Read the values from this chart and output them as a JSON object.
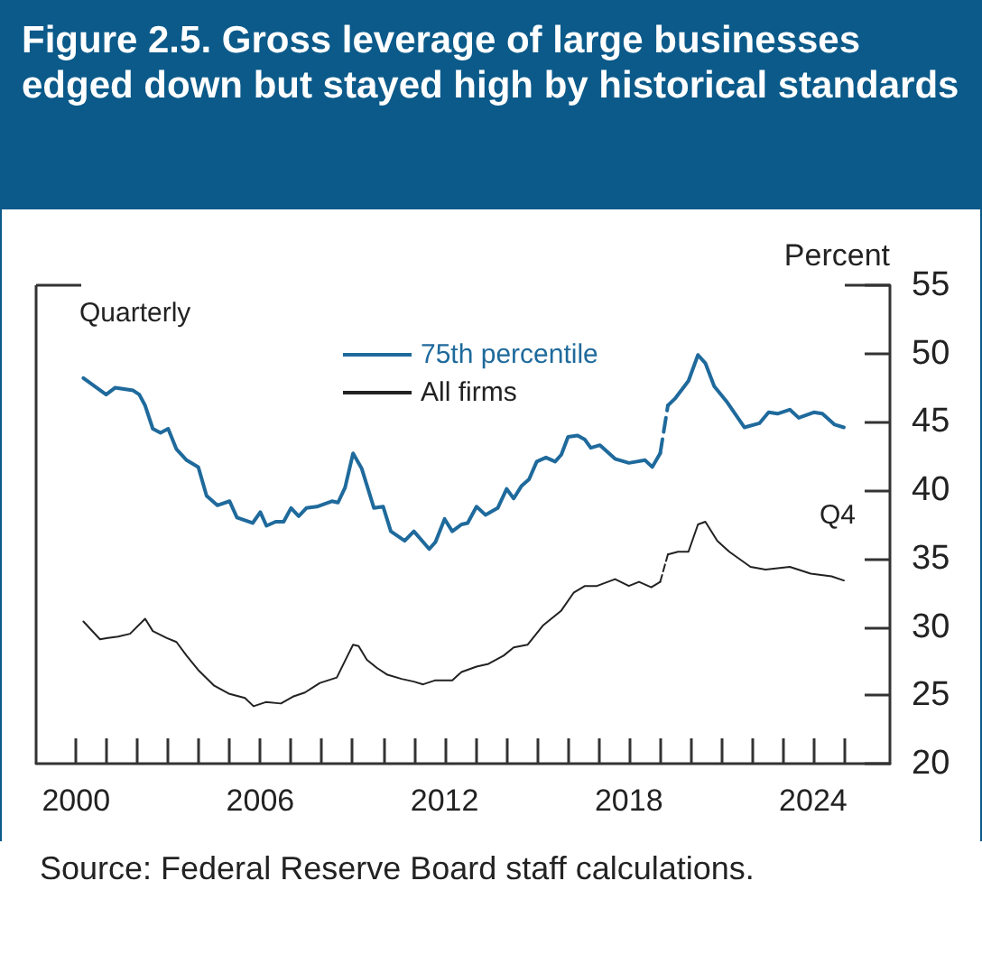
{
  "chart_data": {
    "type": "line",
    "title": "Figure 2.5. Gross leverage of large businesses edged down but stayed high by historical standards",
    "ylabel": "Percent",
    "annotations": [
      "Quarterly",
      "Q4",
      "Source: Federal Reserve Board staff calculations."
    ],
    "xlim": [
      1998.7,
      2026.5
    ],
    "xticks": [
      2000,
      {
        "value": 2001,
        "label": null
      },
      {
        "value": 2002,
        "label": null
      },
      {
        "value": 2003,
        "label": null
      },
      {
        "value": 2004,
        "label": null
      },
      {
        "value": 2005,
        "label": null
      },
      2006,
      {
        "value": 2007,
        "label": null
      },
      {
        "value": 2008,
        "label": null
      },
      {
        "value": 2009,
        "label": null
      },
      {
        "value": 2010,
        "label": null
      },
      {
        "value": 2011,
        "label": null
      },
      2012,
      {
        "value": 2013,
        "label": null
      },
      {
        "value": 2014,
        "label": null
      },
      {
        "value": 2015,
        "label": null
      },
      {
        "value": 2016,
        "label": null
      },
      {
        "value": 2017,
        "label": null
      },
      2018,
      {
        "value": 2019,
        "label": null
      },
      {
        "value": 2020,
        "label": null
      },
      {
        "value": 2021,
        "label": null
      },
      {
        "value": 2022,
        "label": null
      },
      {
        "value": 2023,
        "label": null
      },
      2024,
      {
        "value": 2025,
        "label": null
      }
    ],
    "ylim": [
      20,
      55
    ],
    "yticks": [
      20,
      25,
      30,
      35,
      40,
      45,
      50,
      55
    ],
    "grid": false,
    "legend": "top",
    "marker": "none",
    "series": [
      {
        "name": "75th percentile",
        "color": "#1f6a9c",
        "line_style": "solid",
        "x": [
          2000.24,
          2000.98,
          2001.27,
          2001.86,
          2002.06,
          2002.25,
          2002.5,
          2002.75,
          2003.0,
          2003.27,
          2003.6,
          2003.98,
          2004.25,
          2004.6,
          2005.0,
          2005.24,
          2005.75,
          2006.0,
          2006.2,
          2006.5,
          2006.76,
          2007.0,
          2007.25,
          2007.5,
          2007.84,
          2008.33,
          2008.53,
          2008.76,
          2009.02,
          2009.3,
          2009.7,
          2010.0,
          2010.25,
          2010.7,
          2011.0,
          2011.5,
          2011.7,
          2012.0,
          2012.25,
          2012.55,
          2012.75,
          2013.04,
          2013.33,
          2013.73,
          2014.02,
          2014.25,
          2014.5,
          2014.75,
          2015.0,
          2015.3,
          2015.6,
          2015.8,
          2016.02,
          2016.33,
          2016.57,
          2016.76,
          2017.06,
          2017.55,
          2018.0,
          2018.53,
          2018.76,
          2019.02
        ],
        "values": [
          48.2,
          47.0,
          47.5,
          47.3,
          47.0,
          46.2,
          44.5,
          44.2,
          44.5,
          43.0,
          42.2,
          41.7,
          39.6,
          38.9,
          39.2,
          38.0,
          37.6,
          38.4,
          37.4,
          37.7,
          37.7,
          38.7,
          38.1,
          38.7,
          38.8,
          39.2,
          39.1,
          40.2,
          42.7,
          41.6,
          38.7,
          38.8,
          37.0,
          36.3,
          37.0,
          35.7,
          36.2,
          37.9,
          37.0,
          37.5,
          37.6,
          38.8,
          38.2,
          38.7,
          40.1,
          39.4,
          40.3,
          40.8,
          42.1,
          42.4,
          42.1,
          42.6,
          43.9,
          44.0,
          43.7,
          43.1,
          43.3,
          42.3,
          42.0,
          42.2,
          41.7,
          42.7
        ]
      },
      {
        "color": "#1f6a9c",
        "line_style": "dashed",
        "x": [
          2019.02,
          2019.27
        ],
        "values": [
          42.7,
          46.2
        ]
      },
      {
        "color": "#1f6a9c",
        "line_style": "solid",
        "x": [
          2019.27,
          2019.5,
          2019.94,
          2020.25,
          2020.49,
          2020.78,
          2021.18,
          2021.76,
          2022.25,
          2022.55,
          2022.84,
          2023.24,
          2023.53,
          2024.02,
          2024.3,
          2024.7,
          2025.0
        ],
        "values": [
          46.2,
          46.7,
          48.0,
          49.9,
          49.3,
          47.6,
          46.5,
          44.6,
          44.9,
          45.7,
          45.6,
          45.9,
          45.3,
          45.7,
          45.6,
          44.8,
          44.6
        ]
      },
      {
        "name": "All firms",
        "color": "#222222",
        "line_style": "solid",
        "x": [
          2000.24,
          2000.78,
          2001.04,
          2001.37,
          2001.76,
          2002.25,
          2002.5,
          2002.94,
          2003.27,
          2003.6,
          2004.0,
          2004.5,
          2005.0,
          2005.5,
          2005.78,
          2006.18,
          2006.67,
          2007.06,
          2007.45,
          2007.94,
          2008.49,
          2008.82,
          2009.02,
          2009.2,
          2009.47,
          2009.8,
          2010.14,
          2010.6,
          2011.0,
          2011.3,
          2011.7,
          2012.25,
          2012.55,
          2013.04,
          2013.43,
          2013.92,
          2014.25,
          2014.7,
          2015.2,
          2015.8,
          2016.2,
          2016.57,
          2016.96,
          2017.55,
          2018.0,
          2018.33,
          2018.73,
          2019.02
        ],
        "values": [
          30.4,
          29.1,
          29.2,
          29.3,
          29.5,
          30.6,
          29.7,
          29.2,
          28.9,
          27.9,
          26.8,
          25.7,
          25.1,
          24.8,
          24.2,
          24.5,
          24.4,
          24.9,
          25.2,
          25.9,
          26.3,
          27.8,
          28.7,
          28.6,
          27.6,
          27.0,
          26.5,
          26.2,
          26.0,
          25.8,
          26.1,
          26.1,
          26.7,
          27.1,
          27.3,
          27.9,
          28.5,
          28.7,
          30.1,
          31.2,
          32.5,
          33.0,
          33.0,
          33.5,
          33.0,
          33.3,
          32.9,
          33.3
        ]
      },
      {
        "color": "#222222",
        "line_style": "dashed",
        "x": [
          2019.02,
          2019.27
        ],
        "values": [
          33.3,
          35.3
        ]
      },
      {
        "color": "#222222",
        "line_style": "solid",
        "x": [
          2019.27,
          2019.6,
          2019.94,
          2020.25,
          2020.49,
          2020.88,
          2021.27,
          2021.96,
          2022.45,
          2023.24,
          2023.92,
          2024.6,
          2025.0
        ],
        "values": [
          35.3,
          35.5,
          35.5,
          37.5,
          37.7,
          36.3,
          35.5,
          34.4,
          34.2,
          34.4,
          33.9,
          33.7,
          33.4
        ]
      }
    ]
  }
}
